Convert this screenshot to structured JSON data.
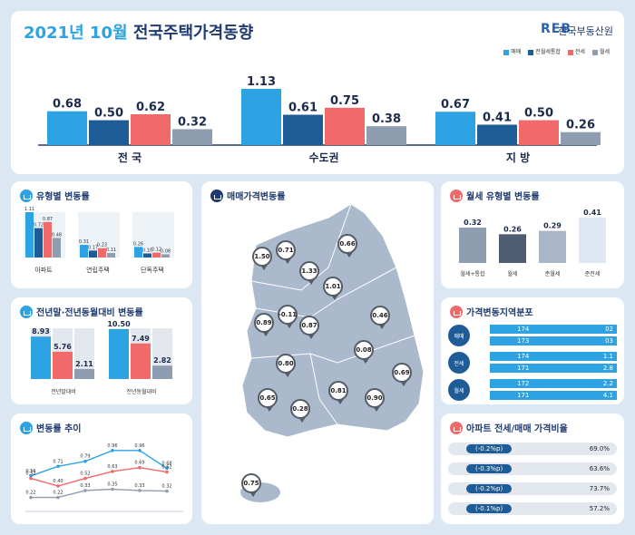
{
  "header": {
    "title": "2021년 10월 전국주택가격동향",
    "title_year": "2021년 10월",
    "title_rest": " 전국주택가격동향",
    "logo_text": "REB",
    "agency": "한국부동산원",
    "legend": [
      {
        "label": "매매",
        "color": "#2ea3e3"
      },
      {
        "label": "전월세통합",
        "color": "#1d5c96"
      },
      {
        "label": "전세",
        "color": "#f06a6a"
      },
      {
        "label": "월세",
        "color": "#8f9db0"
      }
    ]
  },
  "chart_data": [
    {
      "type": "bar",
      "categories": [
        "전 국",
        "수도권",
        "지 방"
      ],
      "series": [
        {
          "name": "매매",
          "values": [
            0.68,
            1.13,
            0.67
          ]
        },
        {
          "name": "전월세통합",
          "values": [
            0.5,
            0.61,
            0.41
          ]
        },
        {
          "name": "전세",
          "values": [
            0.62,
            0.75,
            0.5
          ]
        },
        {
          "name": "월세",
          "values": [
            0.32,
            0.38,
            0.26
          ]
        }
      ]
    },
    {
      "type": "bar",
      "title": "유형별 변동률",
      "categories": [
        "아파트",
        "연립주택",
        "단독주택"
      ],
      "series": [
        {
          "name": "매매",
          "values": [
            1.11,
            0.31,
            0.26
          ]
        },
        {
          "name": "전월세통합",
          "values": [
            0.72,
            0.17,
            0.1
          ]
        },
        {
          "name": "전세",
          "values": [
            0.87,
            0.23,
            0.12
          ]
        },
        {
          "name": "월세",
          "values": [
            0.48,
            0.11,
            0.08
          ]
        }
      ]
    },
    {
      "type": "bar",
      "title": "전년말·전년동월대비 변동률",
      "categories": [
        "전년말대비",
        "전년동월대비"
      ],
      "series": [
        {
          "name": "매매",
          "values": [
            8.93,
            10.5
          ]
        },
        {
          "name": "전세",
          "values": [
            5.76,
            7.49
          ]
        },
        {
          "name": "월세",
          "values": [
            2.11,
            2.82
          ]
        }
      ]
    },
    {
      "type": "line",
      "title": "변동률 추이",
      "series": [
        {
          "name": "매매",
          "values": [
            0.56,
            0.71,
            0.79,
            0.96,
            0.96,
            0.68
          ]
        },
        {
          "name": "전세",
          "values": [
            0.52,
            0.4,
            0.52,
            0.63,
            0.69,
            0.62
          ]
        },
        {
          "name": "월세",
          "values": [
            0.22,
            0.22,
            0.33,
            0.35,
            0.33,
            0.32
          ]
        }
      ]
    },
    {
      "type": "bar",
      "title": "월세 유형별 변동률",
      "categories": [
        "월세+통합",
        "월세",
        "준월세",
        "준전세"
      ],
      "values": [
        0.32,
        0.26,
        0.29,
        0.41
      ]
    }
  ],
  "sections": {
    "type_title": "유형별 변동률",
    "year_title": "전년말·전년동월대비 변동률",
    "trend_title": "변동률 추이",
    "map_title": "매매가격변동률",
    "rent_title": "월세 유형별 변동률",
    "dist_title": "가격변동지역분포",
    "ratio_title": "아파트 전세/매매 가격비율"
  },
  "map": {
    "pins": [
      {
        "region": "인천",
        "value": "1.50"
      },
      {
        "region": "서울",
        "value": "0.71"
      },
      {
        "region": "경기",
        "value": "1.33"
      },
      {
        "region": "강원",
        "value": "0.66"
      },
      {
        "region": "충북",
        "value": "1.01"
      },
      {
        "region": "충남",
        "value": "0.89"
      },
      {
        "region": "세종",
        "value": "-0.11"
      },
      {
        "region": "대전",
        "value": "0.87"
      },
      {
        "region": "경북",
        "value": "0.46"
      },
      {
        "region": "전북",
        "value": "0.80"
      },
      {
        "region": "대구",
        "value": "0.08"
      },
      {
        "region": "울산",
        "value": "0.69"
      },
      {
        "region": "광주",
        "value": "0.65"
      },
      {
        "region": "전남",
        "value": "0.28"
      },
      {
        "region": "경남",
        "value": "0.81"
      },
      {
        "region": "부산",
        "value": "0.90"
      },
      {
        "region": "제주",
        "value": "0.75"
      }
    ]
  },
  "dist": {
    "rows": [
      {
        "group": "매매",
        "a": "174",
        "b": "02"
      },
      {
        "group": "매매",
        "a": "173",
        "b": "03"
      },
      {
        "group": "전세",
        "a": "174",
        "b": "1.1"
      },
      {
        "group": "전세",
        "a": "171",
        "b": "2.8"
      },
      {
        "group": "월세",
        "a": "172",
        "b": "2.2"
      },
      {
        "group": "월세",
        "a": "171",
        "b": "4.1"
      }
    ]
  },
  "ratio": {
    "rows": [
      {
        "label": "(-0.2%p)",
        "value": "69.0%"
      },
      {
        "label": "(-0.3%p)",
        "value": "63.6%"
      },
      {
        "label": "(-0.2%p)",
        "value": "73.7%"
      },
      {
        "label": "(-0.1%p)",
        "value": "57.2%"
      }
    ]
  }
}
